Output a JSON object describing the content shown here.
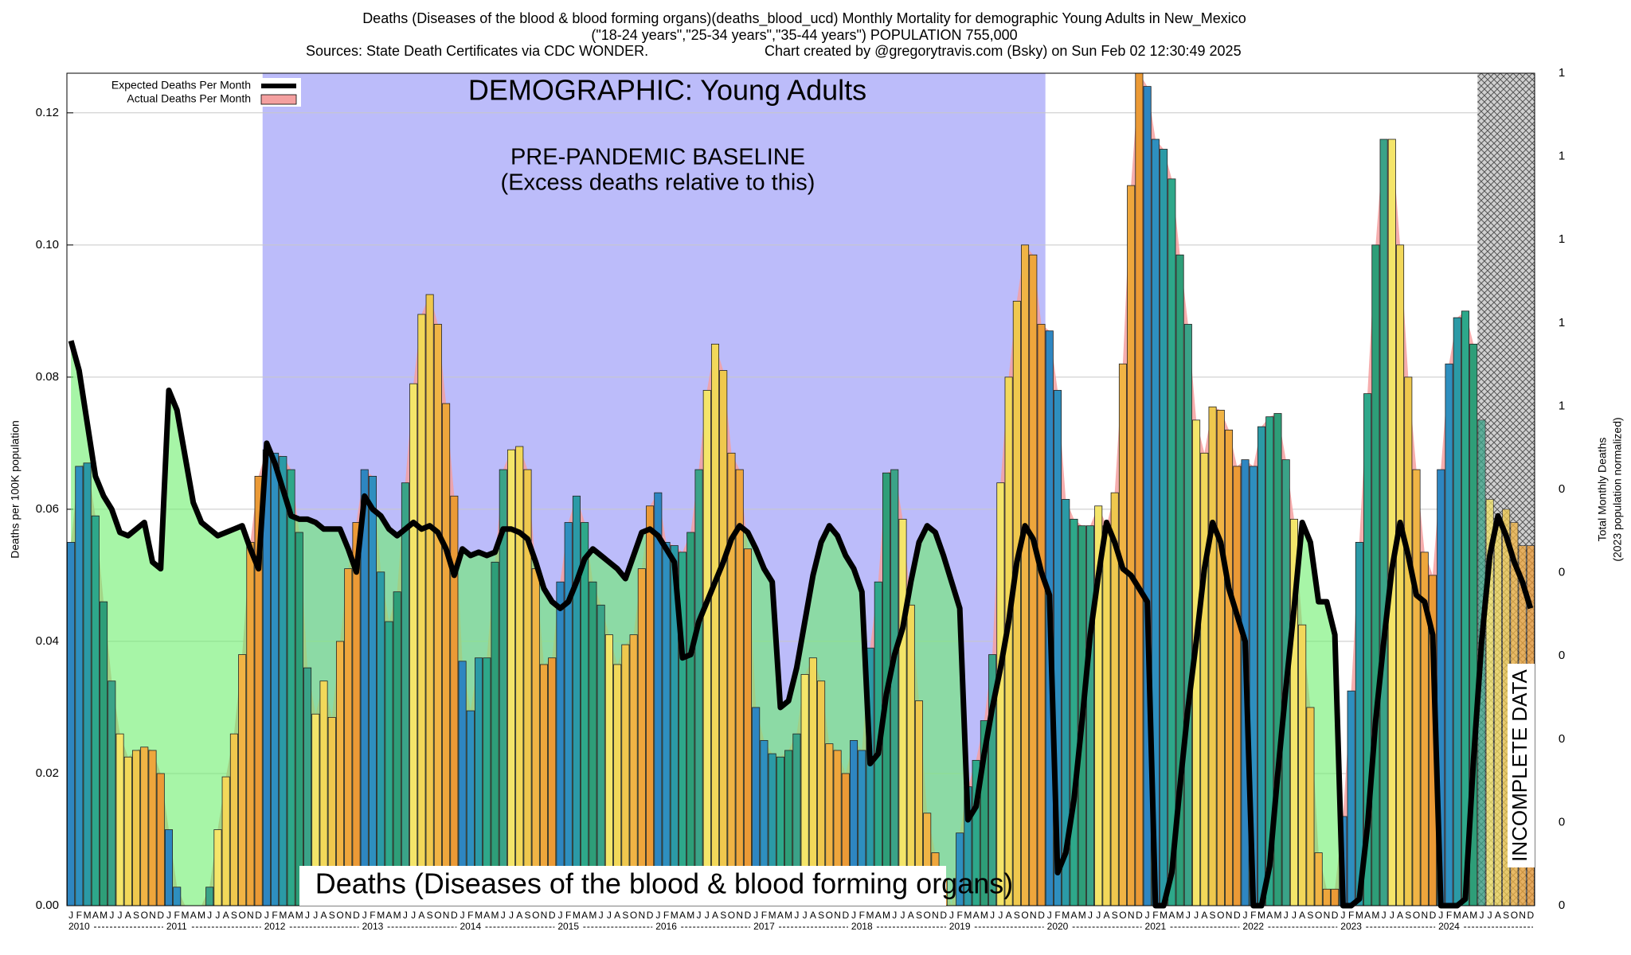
{
  "chart_data": {
    "type": "bar",
    "title": "Deaths (Diseases of the blood & blood forming organs)(deaths_blood_ucd) Monthly Mortality for demographic Young Adults in New_Mexico",
    "subtitle": "(\"18-24 years\",\"25-34 years\",\"35-44 years\") POPULATION 755,000",
    "source": "Sources: State Death Certificates via CDC WONDER.",
    "credit": "Chart created by @gregorytravis.com (Bsky) on Sun Feb 02 12:30:49 2025",
    "demographic_label": "DEMOGRAPHIC: Young Adults",
    "bottom_label": "Deaths (Diseases of the blood & blood forming organs)",
    "baseline": {
      "label": "PRE-PANDEMIC BASELINE",
      "sublabel": "(Excess deaths relative to this)",
      "start_year": 2012,
      "end_year": 2019,
      "color": "#bcbcfa"
    },
    "incomplete": {
      "label": "INCOMPLETE DATA",
      "start_year": 2024,
      "start_month": 6
    },
    "ylabel": "Deaths per 100K population",
    "y2label": "Total Monthly Deaths",
    "y2sublabel": "(2023 population normalized)",
    "years": [
      2010,
      2011,
      2012,
      2013,
      2014,
      2015,
      2016,
      2017,
      2018,
      2019,
      2020,
      2021,
      2022,
      2023,
      2024
    ],
    "months": [
      "J",
      "F",
      "M",
      "A",
      "M",
      "J",
      "J",
      "A",
      "S",
      "O",
      "N",
      "D"
    ],
    "bar_colors": [
      "#2e86c1",
      "#2e8fbf",
      "#2b9aa6",
      "#2ea88a",
      "#2e9e78",
      "#3aa388",
      "#f4e56a",
      "#f2d85a",
      "#efc84e",
      "#f0b445",
      "#eea63c",
      "#eb9a36"
    ],
    "gap_color": "#6cee6c",
    "series": [
      {
        "name": "Expected Deaths Per Month",
        "color": "#000000",
        "values": [
          0.0855,
          0.081,
          0.073,
          0.065,
          0.062,
          0.06,
          0.0565,
          0.056,
          0.057,
          0.058,
          0.052,
          0.051,
          0.078,
          0.075,
          0.068,
          0.061,
          0.058,
          0.057,
          0.056,
          0.0565,
          0.057,
          0.0575,
          0.054,
          0.051,
          0.07,
          0.067,
          0.063,
          0.059,
          0.0585,
          0.0585,
          0.058,
          0.057,
          0.057,
          0.057,
          0.054,
          0.0505,
          0.062,
          0.06,
          0.059,
          0.057,
          0.056,
          0.057,
          0.058,
          0.057,
          0.0575,
          0.0565,
          0.054,
          0.05,
          0.054,
          0.053,
          0.0535,
          0.053,
          0.0535,
          0.057,
          0.057,
          0.0565,
          0.0555,
          0.052,
          0.048,
          0.046,
          0.045,
          0.046,
          0.049,
          0.0525,
          0.054,
          0.053,
          0.052,
          0.051,
          0.0495,
          0.053,
          0.0565,
          0.057,
          0.056,
          0.054,
          0.052,
          0.0375,
          0.038,
          0.043,
          0.046,
          0.049,
          0.052,
          0.0555,
          0.0575,
          0.0565,
          0.054,
          0.051,
          0.049,
          0.03,
          0.031,
          0.036,
          0.043,
          0.05,
          0.055,
          0.0575,
          0.056,
          0.053,
          0.051,
          0.0475,
          0.0215,
          0.023,
          0.032,
          0.038,
          0.042,
          0.049,
          0.055,
          0.0575,
          0.0565,
          0.053,
          0.049,
          0.045,
          0.013,
          0.015,
          0.023,
          0.03,
          0.036,
          0.043,
          0.052,
          0.0575,
          0.0555,
          0.0505,
          0.047,
          0.005,
          0.008,
          0.016,
          0.028,
          0.041,
          0.05,
          0.058,
          0.055,
          0.051,
          0.05,
          0.048,
          0.046,
          0,
          0,
          0.005,
          0.018,
          0.03,
          0.04,
          0.051,
          0.058,
          0.055,
          0.048,
          0.044,
          0.04,
          0,
          0,
          0.006,
          0.02,
          0.033,
          0.045,
          0.058,
          0.055,
          0.046,
          0.046,
          0.041,
          0,
          0,
          0.001,
          0.012,
          0.028,
          0.04,
          0.051,
          0.058,
          0.053,
          0.047,
          0.046,
          0.041,
          0,
          0,
          0,
          0.001,
          0.022,
          0.04,
          0.053,
          0.059,
          0.056,
          0.052,
          0.049,
          0.045
        ]
      },
      {
        "name": "Actual Deaths Per Month",
        "color": "#f4a0a0",
        "values": [
          0.055,
          0.0665,
          0.067,
          0.059,
          0.046,
          0.034,
          0.026,
          0.0225,
          0.0235,
          0.024,
          0.0235,
          0.02,
          0.0115,
          0.0028,
          0,
          0,
          0,
          0.0028,
          0.0115,
          0.0195,
          0.026,
          0.038,
          0.055,
          0.065,
          0.069,
          0.0685,
          0.068,
          0.066,
          0.0565,
          0.036,
          0.029,
          0.034,
          0.0285,
          0.04,
          0.051,
          0.058,
          0.066,
          0.065,
          0.0505,
          0.043,
          0.0475,
          0.064,
          0.079,
          0.0895,
          0.0925,
          0.088,
          0.076,
          0.062,
          0.037,
          0.0295,
          0.0375,
          0.0375,
          0.052,
          0.066,
          0.069,
          0.0695,
          0.066,
          0.051,
          0.0365,
          0.0375,
          0.049,
          0.058,
          0.062,
          0.058,
          0.049,
          0.0455,
          0.041,
          0.0365,
          0.0395,
          0.041,
          0.051,
          0.0605,
          0.0625,
          0.055,
          0.0545,
          0.0535,
          0.0565,
          0.066,
          0.078,
          0.085,
          0.081,
          0.0685,
          0.066,
          0.054,
          0.03,
          0.025,
          0.023,
          0.0225,
          0.0235,
          0.026,
          0.035,
          0.0375,
          0.034,
          0.0245,
          0.0235,
          0.02,
          0.025,
          0.0235,
          0.039,
          0.049,
          0.0655,
          0.066,
          0.0585,
          0.0455,
          0.031,
          0.014,
          0.008,
          0.004,
          0,
          0.011,
          0.018,
          0.022,
          0.028,
          0.038,
          0.064,
          0.08,
          0.0915,
          0.1,
          0.0985,
          0.088,
          0.087,
          0.078,
          0.0615,
          0.0585,
          0.0575,
          0.0575,
          0.0605,
          0.0575,
          0.0625,
          0.082,
          0.109,
          0.126,
          0.124,
          0.116,
          0.1145,
          0.11,
          0.0985,
          0.088,
          0.0735,
          0.0685,
          0.0755,
          0.075,
          0.072,
          0.0665,
          0.0675,
          0.0665,
          0.0725,
          0.074,
          0.0745,
          0.0675,
          0.0585,
          0.0425,
          0.03,
          0.008,
          0.0025,
          0.0025,
          0.0135,
          0.0325,
          0.055,
          0.0775,
          0.1,
          0.116,
          0.116,
          0.1,
          0.08,
          0.066,
          0.0535,
          0.05,
          0.066,
          0.082,
          0.089,
          0.09,
          0.085,
          0.0735,
          0.0615,
          0.0575,
          0.06,
          0.058,
          0.0545,
          0.0545
        ]
      }
    ],
    "ylim": [
      0,
      0.126
    ],
    "yticks": [
      {
        "value": 0,
        "label": "0.00"
      },
      {
        "value": 0.02,
        "label": "0.02"
      },
      {
        "value": 0.04,
        "label": "0.04"
      },
      {
        "value": 0.06,
        "label": "0.06"
      },
      {
        "value": 0.08,
        "label": "0.08"
      },
      {
        "value": 0.1,
        "label": "0.10"
      },
      {
        "value": 0.12,
        "label": "0.12"
      }
    ],
    "y2lim": [
      0,
      1
    ],
    "y2ticks": [
      {
        "value": 0,
        "label": "0"
      },
      {
        "value": 0.1,
        "label": "0"
      },
      {
        "value": 0.2,
        "label": "0"
      },
      {
        "value": 0.3,
        "label": "0"
      },
      {
        "value": 0.4,
        "label": "0"
      },
      {
        "value": 0.5,
        "label": "0"
      },
      {
        "value": 0.6,
        "label": "1"
      },
      {
        "value": 0.7,
        "label": "1"
      },
      {
        "value": 0.8,
        "label": "1"
      },
      {
        "value": 0.9,
        "label": "1"
      },
      {
        "value": 1,
        "label": "1"
      }
    ],
    "grid": true,
    "legend": "upper left"
  }
}
